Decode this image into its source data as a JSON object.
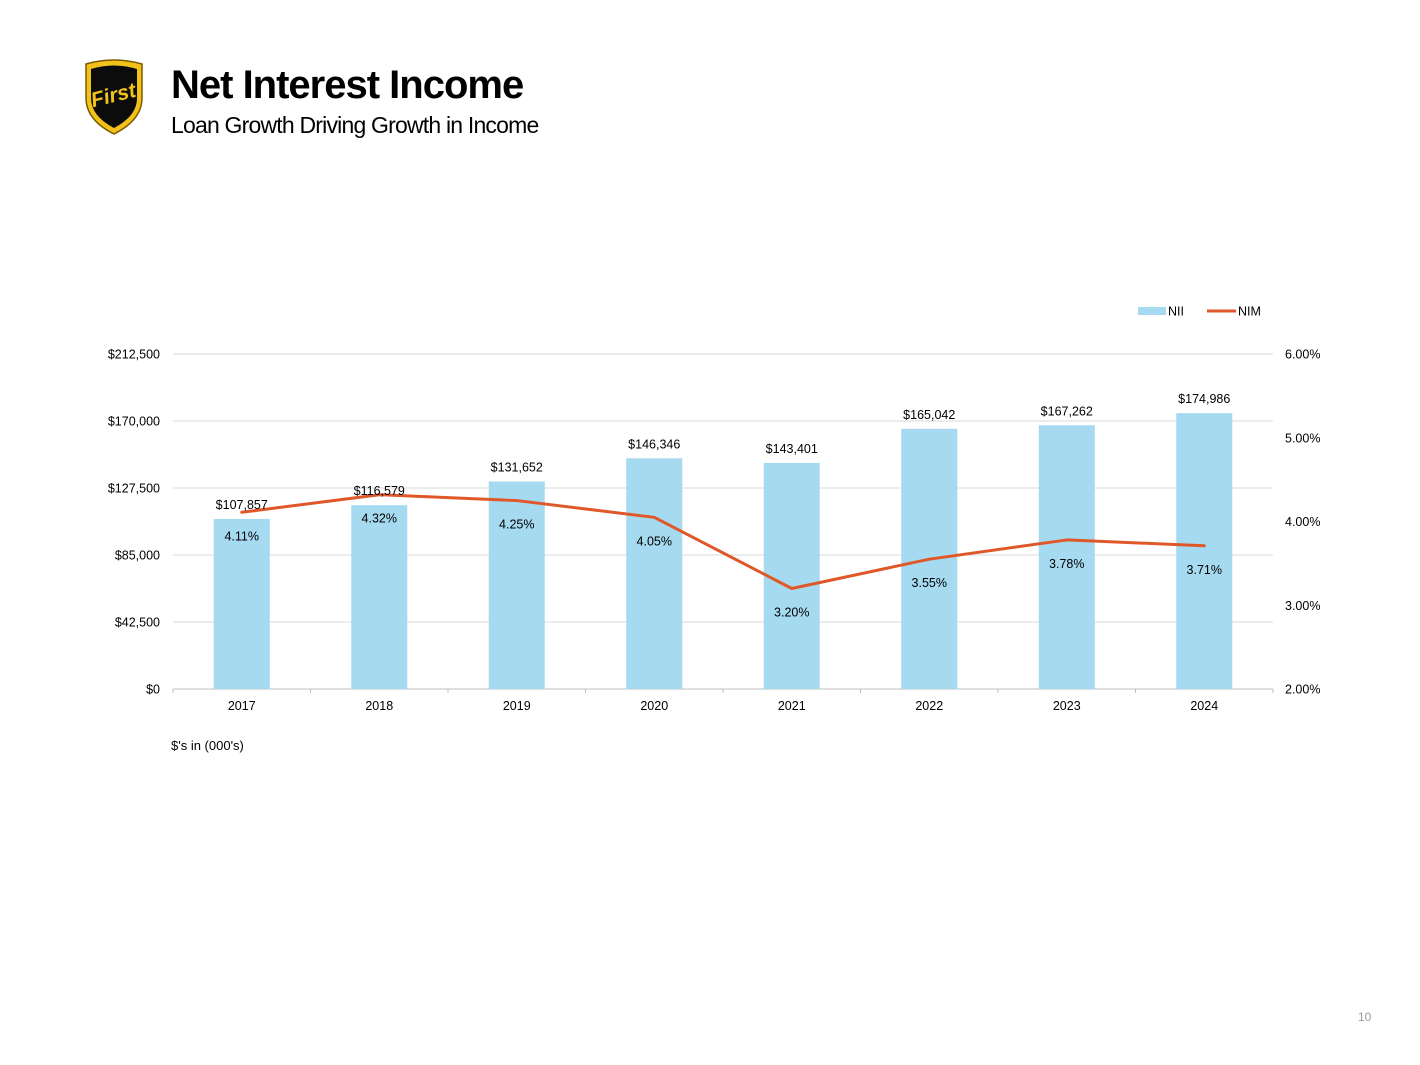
{
  "header": {
    "title": "Net Interest Income",
    "subtitle": "Loan Growth Driving Growth in Income",
    "logo_text": "First"
  },
  "footnote": "$'s in (000's)",
  "page_number": "10",
  "colors": {
    "bar": "#a6daf0",
    "line": "#e0582a",
    "grid": "#d9d9d9",
    "text": "#000000"
  },
  "chart_data": {
    "type": "bar",
    "title": "",
    "xlabel": "",
    "ylabel": "",
    "categories": [
      "2017",
      "2018",
      "2019",
      "2020",
      "2021",
      "2022",
      "2023",
      "2024"
    ],
    "series": [
      {
        "name": "NII",
        "type": "bar",
        "axis": "left",
        "values": [
          107857,
          116579,
          131652,
          146346,
          143401,
          165042,
          167262,
          174986
        ],
        "labels": [
          "$107,857",
          "$116,579",
          "$131,652",
          "$146,346",
          "$143,401",
          "$165,042",
          "$167,262",
          "$174,986"
        ]
      },
      {
        "name": "NIM",
        "type": "line",
        "axis": "right",
        "values": [
          4.11,
          4.32,
          4.25,
          4.05,
          3.2,
          3.55,
          3.78,
          3.71
        ],
        "labels": [
          "4.11%",
          "4.32%",
          "4.25%",
          "4.05%",
          "3.20%",
          "3.55%",
          "3.78%",
          "3.71%"
        ]
      }
    ],
    "left_axis": {
      "ylim": [
        0,
        212500
      ],
      "ticks": [
        0,
        42500,
        85000,
        127500,
        170000,
        212500
      ],
      "tick_labels": [
        "$0",
        "$42,500",
        "$85,000",
        "$127,500",
        "$170,000",
        "$212,500"
      ]
    },
    "right_axis": {
      "ylim": [
        2,
        6
      ],
      "ticks": [
        2,
        3,
        4,
        5,
        6
      ],
      "tick_labels": [
        "2.00%",
        "3.00%",
        "4.00%",
        "5.00%",
        "6.00%"
      ]
    },
    "grid": true,
    "legend": {
      "position": "top-right",
      "entries": [
        "NII",
        "NIM"
      ]
    }
  }
}
